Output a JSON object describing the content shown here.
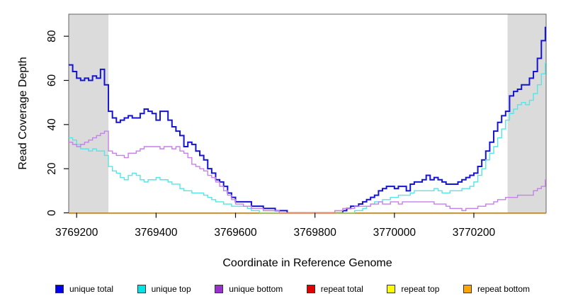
{
  "chart_data": {
    "type": "line",
    "step_interpolation": true,
    "title": "",
    "xlabel": "Coordinate in Reference Genome",
    "ylabel": "Read Coverage Depth",
    "xlim": [
      3769180,
      3770382
    ],
    "ylim": [
      0,
      90
    ],
    "x_ticks": [
      3769200,
      3769400,
      3769600,
      3769800,
      3770000,
      3770200
    ],
    "y_ticks": [
      0,
      20,
      40,
      60,
      80
    ],
    "grid": false,
    "legend_position": "bottom",
    "shade_color": "#DBDBDB",
    "frame_color": "#666666",
    "tick_color": "#111111",
    "shaded_regions": [
      {
        "from": 3769180,
        "to": 3769280
      },
      {
        "from": 3770285,
        "to": 3770382
      }
    ],
    "x": [
      3769180,
      3769190,
      3769200,
      3769210,
      3769220,
      3769230,
      3769240,
      3769250,
      3769260,
      3769270,
      3769280,
      3769290,
      3769300,
      3769310,
      3769320,
      3769330,
      3769340,
      3769350,
      3769360,
      3769370,
      3769380,
      3769390,
      3769400,
      3769410,
      3769420,
      3769430,
      3769440,
      3769450,
      3769460,
      3769470,
      3769480,
      3769490,
      3769500,
      3769510,
      3769520,
      3769530,
      3769540,
      3769550,
      3769560,
      3769570,
      3769580,
      3769590,
      3769600,
      3769610,
      3769620,
      3769630,
      3769640,
      3769650,
      3769660,
      3769670,
      3769680,
      3769690,
      3769700,
      3769710,
      3769720,
      3769730,
      3769740,
      3769750,
      3769760,
      3769770,
      3769780,
      3769790,
      3769800,
      3769810,
      3769820,
      3769830,
      3769840,
      3769850,
      3769860,
      3769870,
      3769880,
      3769890,
      3769900,
      3769910,
      3769920,
      3769930,
      3769940,
      3769950,
      3769960,
      3769970,
      3769980,
      3769990,
      3770000,
      3770010,
      3770020,
      3770030,
      3770040,
      3770050,
      3770060,
      3770070,
      3770080,
      3770090,
      3770100,
      3770110,
      3770120,
      3770130,
      3770140,
      3770150,
      3770160,
      3770170,
      3770180,
      3770190,
      3770200,
      3770210,
      3770220,
      3770230,
      3770240,
      3770250,
      3770260,
      3770270,
      3770280,
      3770290,
      3770300,
      3770310,
      3770320,
      3770330,
      3770340,
      3770350,
      3770360,
      3770370,
      3770380
    ],
    "series": [
      {
        "name": "unique total",
        "color": "#1414D2",
        "legend_color": "#0000EE",
        "width": 2,
        "values": [
          67,
          64,
          61,
          60,
          61,
          60,
          62,
          61,
          65,
          58,
          46,
          43,
          41,
          42,
          43,
          44,
          43,
          43,
          45,
          47,
          46,
          45,
          42,
          46,
          46,
          42,
          39,
          37,
          35,
          30,
          32,
          31,
          28,
          26,
          24,
          20,
          18,
          15,
          14,
          12,
          9,
          7,
          5,
          5,
          5,
          5,
          3,
          3,
          3,
          2,
          2,
          2,
          1,
          1,
          1,
          0,
          0,
          0,
          0,
          0,
          0,
          0,
          0,
          0,
          0,
          0,
          0,
          0,
          0,
          1,
          2,
          3,
          3,
          4,
          5,
          6,
          7,
          8,
          10,
          11,
          12,
          12,
          11,
          12,
          12,
          10,
          13,
          14,
          14,
          15,
          17,
          15,
          16,
          15,
          14,
          13,
          13,
          13,
          14,
          15,
          16,
          17,
          18,
          21,
          24,
          28,
          32,
          37,
          41,
          44,
          46,
          53,
          55,
          56,
          58,
          58,
          61,
          64,
          70,
          78,
          84
        ]
      },
      {
        "name": "unique top",
        "color": "#55E6E6",
        "legend_color": "#00E5E5",
        "width": 1.4,
        "values": [
          34,
          33,
          31,
          29,
          29,
          28,
          29,
          28,
          28,
          26,
          21,
          19,
          18,
          16,
          15,
          17,
          18,
          17,
          15,
          14,
          15,
          15,
          16,
          15,
          15,
          14,
          13,
          13,
          11,
          10,
          10,
          9,
          9,
          9,
          8,
          7,
          6,
          5,
          5,
          4,
          4,
          3,
          3,
          3,
          3,
          2,
          1,
          1,
          0,
          0,
          0,
          0,
          0,
          0,
          0,
          0,
          0,
          0,
          0,
          0,
          0,
          0,
          0,
          0,
          0,
          0,
          0,
          0,
          0,
          0,
          0,
          0,
          1,
          1,
          2,
          3,
          4,
          5,
          5,
          6,
          6,
          7,
          7,
          8,
          8,
          8,
          9,
          10,
          10,
          10,
          10,
          10,
          11,
          10,
          9,
          9,
          10,
          10,
          10,
          11,
          11,
          12,
          14,
          17,
          20,
          24,
          27,
          30,
          34,
          38,
          42,
          45,
          47,
          49,
          50,
          49,
          51,
          54,
          58,
          63,
          68
        ]
      },
      {
        "name": "unique bottom",
        "color": "#C77FEC",
        "legend_color": "#9932CC",
        "width": 1.4,
        "values": [
          32,
          31,
          30,
          31,
          32,
          33,
          34,
          35,
          36,
          37,
          28,
          27,
          26,
          26,
          25,
          27,
          27,
          28,
          29,
          30,
          30,
          30,
          30,
          29,
          30,
          30,
          29,
          30,
          28,
          27,
          25,
          22,
          21,
          20,
          19,
          17,
          16,
          14,
          12,
          10,
          8,
          6,
          4,
          4,
          3,
          3,
          2,
          2,
          2,
          1,
          1,
          1,
          1,
          0,
          0,
          0,
          0,
          0,
          0,
          0,
          0,
          0,
          0,
          0,
          0,
          0,
          0,
          1,
          1,
          2,
          2,
          2,
          3,
          3,
          3,
          3,
          4,
          4,
          5,
          4,
          4,
          5,
          5,
          4,
          5,
          5,
          5,
          5,
          5,
          5,
          5,
          5,
          4,
          4,
          4,
          3,
          2,
          2,
          2,
          1,
          2,
          2,
          2,
          3,
          3,
          4,
          4,
          5,
          6,
          6,
          7,
          7,
          7,
          8,
          8,
          8,
          8,
          10,
          11,
          12,
          15
        ]
      },
      {
        "name": "repeat total",
        "color": "#E00000",
        "legend_color": "#E00000",
        "width": 1.4,
        "constant": 0
      },
      {
        "name": "repeat top",
        "color": "#FFFF00",
        "legend_color": "#FFFF00",
        "width": 1.4,
        "constant": 0
      },
      {
        "name": "repeat bottom",
        "color": "#FFA500",
        "legend_color": "#FFA500",
        "width": 1.6,
        "constant": 0
      }
    ]
  }
}
